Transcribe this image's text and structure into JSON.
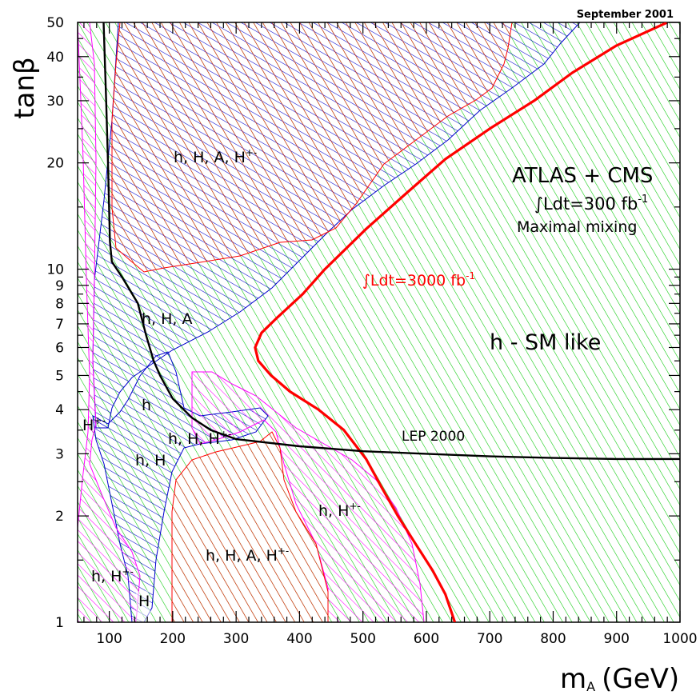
{
  "chart_data": {
    "type": "area",
    "date_label": "September 2001",
    "xlabel_main": "m",
    "xlabel_sub": "A",
    "xlabel_unit": "(GeV)",
    "ylabel": "tanβ",
    "xlim": [
      50,
      1000
    ],
    "ylim": [
      1,
      50
    ],
    "y_scale": "log",
    "grid": false,
    "x_ticks": [
      100,
      200,
      300,
      400,
      500,
      600,
      700,
      800,
      900,
      1000
    ],
    "y_ticks": [
      1,
      2,
      3,
      4,
      5,
      6,
      7,
      8,
      9,
      10,
      20,
      30,
      40,
      50
    ],
    "title_block": {
      "line1": "ATLAS + CMS",
      "line2": "∫Ldt=300 fb",
      "line2_exp": "-1",
      "line3": "Maximal mixing"
    },
    "colors": {
      "green_hatch": "#00c800",
      "red_hatch": "#ff0000",
      "blue_hatch": "#0000cc",
      "magenta_hatch": "#ff00ff",
      "line_3000": "#ff0000",
      "line_lep": "#000000"
    },
    "curves": [
      {
        "name": "∫Ldt=3000 fb",
        "name_exp": "-1",
        "color": "#ff0000",
        "points": [
          [
            645,
            1.0
          ],
          [
            630,
            1.2
          ],
          [
            610,
            1.4
          ],
          [
            580,
            1.7
          ],
          [
            555,
            2.0
          ],
          [
            530,
            2.4
          ],
          [
            505,
            2.9
          ],
          [
            470,
            3.5
          ],
          [
            430,
            4.0
          ],
          [
            385,
            4.5
          ],
          [
            355,
            5.0
          ],
          [
            335,
            5.5
          ],
          [
            330,
            6.0
          ],
          [
            340,
            6.6
          ],
          [
            365,
            7.3
          ],
          [
            405,
            8.5
          ],
          [
            440,
            10.0
          ],
          [
            505,
            13.0
          ],
          [
            570,
            16.5
          ],
          [
            630,
            20.5
          ],
          [
            700,
            25.0
          ],
          [
            770,
            30.0
          ],
          [
            830,
            36.0
          ],
          [
            900,
            43.0
          ],
          [
            980,
            50.0
          ]
        ]
      },
      {
        "name": "LEP 2000",
        "color": "#000000",
        "points": [
          [
            91,
            50.0
          ],
          [
            95,
            30.0
          ],
          [
            98,
            20.0
          ],
          [
            101,
            12.0
          ],
          [
            104,
            10.5
          ],
          [
            120,
            9.5
          ],
          [
            145,
            8.0
          ],
          [
            158,
            6.5
          ],
          [
            170,
            5.5
          ],
          [
            180,
            5.0
          ],
          [
            200,
            4.3
          ],
          [
            230,
            3.8
          ],
          [
            260,
            3.5
          ],
          [
            300,
            3.3
          ],
          [
            400,
            3.15
          ],
          [
            500,
            3.05
          ],
          [
            600,
            3.0
          ],
          [
            700,
            2.95
          ],
          [
            800,
            2.92
          ],
          [
            900,
            2.9
          ],
          [
            1000,
            2.9
          ]
        ]
      }
    ],
    "regions": [
      {
        "label": "h, H, A, H",
        "label_exp": "+-",
        "color": "red",
        "location": "upper left"
      },
      {
        "label": "h, H, A",
        "color": "blue",
        "location": "middle left"
      },
      {
        "label": "h - SM like",
        "color": "green",
        "location": "right"
      },
      {
        "label": "h",
        "color": "green",
        "location": "lower left"
      },
      {
        "label": "H",
        "label_exp": "+-",
        "color": "magenta",
        "location": "lower left edge"
      },
      {
        "label": "h, H, H",
        "label_exp": "+-",
        "color": "blue",
        "location": "lower middle"
      },
      {
        "label": "h, H",
        "color": "blue",
        "location": "lower left"
      },
      {
        "label": "h, H",
        "label_exp": "+-",
        "color": "magenta",
        "location": "lower middle right"
      },
      {
        "label": "h, H, A, H",
        "label_exp": "+-",
        "color": "red",
        "location": "bottom middle"
      },
      {
        "label": "h, H",
        "label_exp": "+-",
        "color": "magenta",
        "location": "bottom left"
      },
      {
        "label": "H",
        "color": "green",
        "location": "bottom left corner"
      }
    ],
    "annotations": [
      {
        "text": "LEP 2000"
      }
    ]
  }
}
